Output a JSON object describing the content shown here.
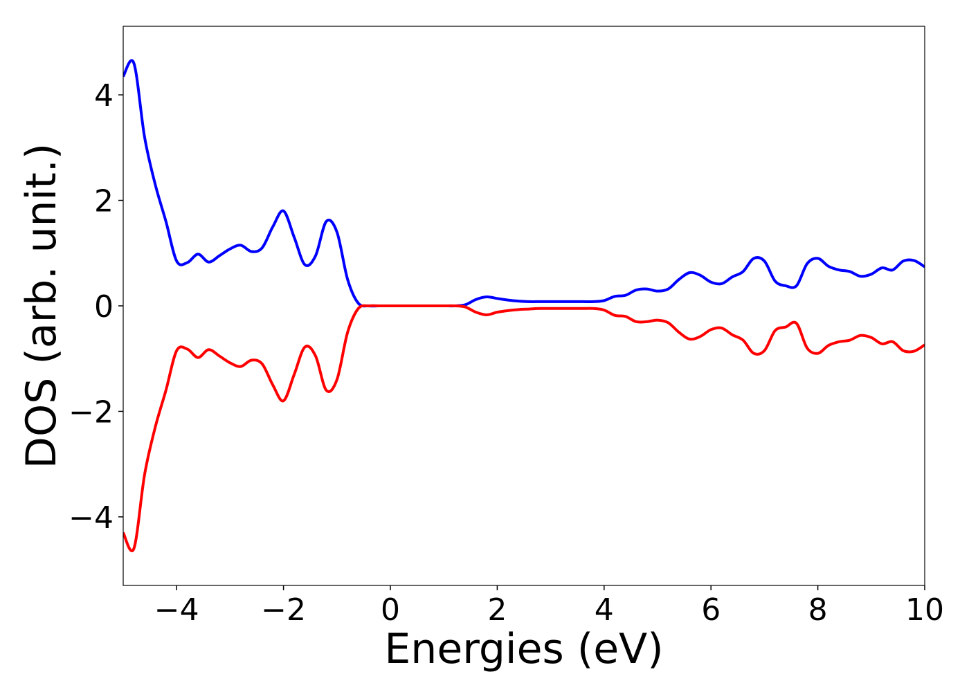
{
  "chart_data": {
    "type": "line",
    "xlabel": "Energies (eV)",
    "ylabel": "DOS (arb. unit.)",
    "x": [
      -5,
      -4.8,
      -4.6,
      -4.4,
      -4.2,
      -4,
      -3.8,
      -3.6,
      -3.4,
      -3.2,
      -3,
      -2.8,
      -2.6,
      -2.4,
      -2.2,
      -2,
      -1.8,
      -1.6,
      -1.4,
      -1.2,
      -1,
      -0.8,
      -0.6,
      -0.4,
      -0.2,
      0,
      0.2,
      0.4,
      0.6,
      0.8,
      1,
      1.2,
      1.4,
      1.6,
      1.8,
      2,
      2.2,
      2.4,
      2.6,
      2.8,
      3,
      3.2,
      3.4,
      3.6,
      3.8,
      4,
      4.2,
      4.4,
      4.6,
      4.8,
      5,
      5.2,
      5.4,
      5.6,
      5.8,
      6,
      6.2,
      6.4,
      6.6,
      6.8,
      7,
      7.2,
      7.4,
      7.6,
      7.8,
      8,
      8.2,
      8.4,
      8.6,
      8.8,
      9,
      9.2,
      9.4,
      9.6,
      9.8,
      10
    ],
    "series": [
      {
        "color": "#0000ff",
        "values": [
          4.35,
          4.6,
          3.2,
          2.3,
          1.6,
          0.85,
          0.82,
          0.98,
          0.83,
          0.95,
          1.08,
          1.15,
          1.03,
          1.1,
          1.5,
          1.8,
          1.3,
          0.78,
          0.95,
          1.6,
          1.4,
          0.5,
          0.05,
          0,
          0,
          0,
          0,
          0,
          0,
          0,
          0,
          0,
          0.02,
          0.12,
          0.17,
          0.14,
          0.11,
          0.09,
          0.08,
          0.08,
          0.08,
          0.08,
          0.08,
          0.08,
          0.08,
          0.1,
          0.18,
          0.2,
          0.3,
          0.32,
          0.28,
          0.32,
          0.5,
          0.63,
          0.58,
          0.45,
          0.42,
          0.55,
          0.65,
          0.9,
          0.85,
          0.47,
          0.38,
          0.38,
          0.8,
          0.9,
          0.75,
          0.68,
          0.65,
          0.56,
          0.6,
          0.72,
          0.68,
          0.85,
          0.86,
          0.74
        ]
      },
      {
        "color": "#ff0000",
        "values": [
          -4.3,
          -4.6,
          -3.2,
          -2.3,
          -1.6,
          -0.85,
          -0.82,
          -0.98,
          -0.83,
          -0.95,
          -1.08,
          -1.15,
          -1.03,
          -1.1,
          -1.5,
          -1.8,
          -1.3,
          -0.78,
          -0.95,
          -1.6,
          -1.4,
          -0.5,
          -0.05,
          0,
          0,
          0,
          0,
          0,
          0,
          0,
          0,
          0,
          -0.02,
          -0.12,
          -0.17,
          -0.12,
          -0.09,
          -0.07,
          -0.06,
          -0.05,
          -0.05,
          -0.05,
          -0.05,
          -0.05,
          -0.05,
          -0.08,
          -0.18,
          -0.2,
          -0.3,
          -0.3,
          -0.27,
          -0.32,
          -0.5,
          -0.63,
          -0.58,
          -0.45,
          -0.42,
          -0.55,
          -0.65,
          -0.9,
          -0.85,
          -0.47,
          -0.4,
          -0.33,
          -0.8,
          -0.9,
          -0.75,
          -0.68,
          -0.65,
          -0.56,
          -0.6,
          -0.72,
          -0.68,
          -0.85,
          -0.86,
          -0.74
        ]
      }
    ],
    "xlim": [
      -5,
      10
    ],
    "xticks": [
      {
        "value": -4,
        "label": "−4"
      },
      {
        "value": -2,
        "label": "−2"
      },
      0,
      2,
      4,
      6,
      8,
      10
    ],
    "ylim": [
      -5.3,
      5.3
    ],
    "yticks": [
      {
        "value": -4,
        "label": "−4"
      },
      {
        "value": -2,
        "label": "−2"
      },
      0,
      2,
      4
    ],
    "grid": false
  }
}
